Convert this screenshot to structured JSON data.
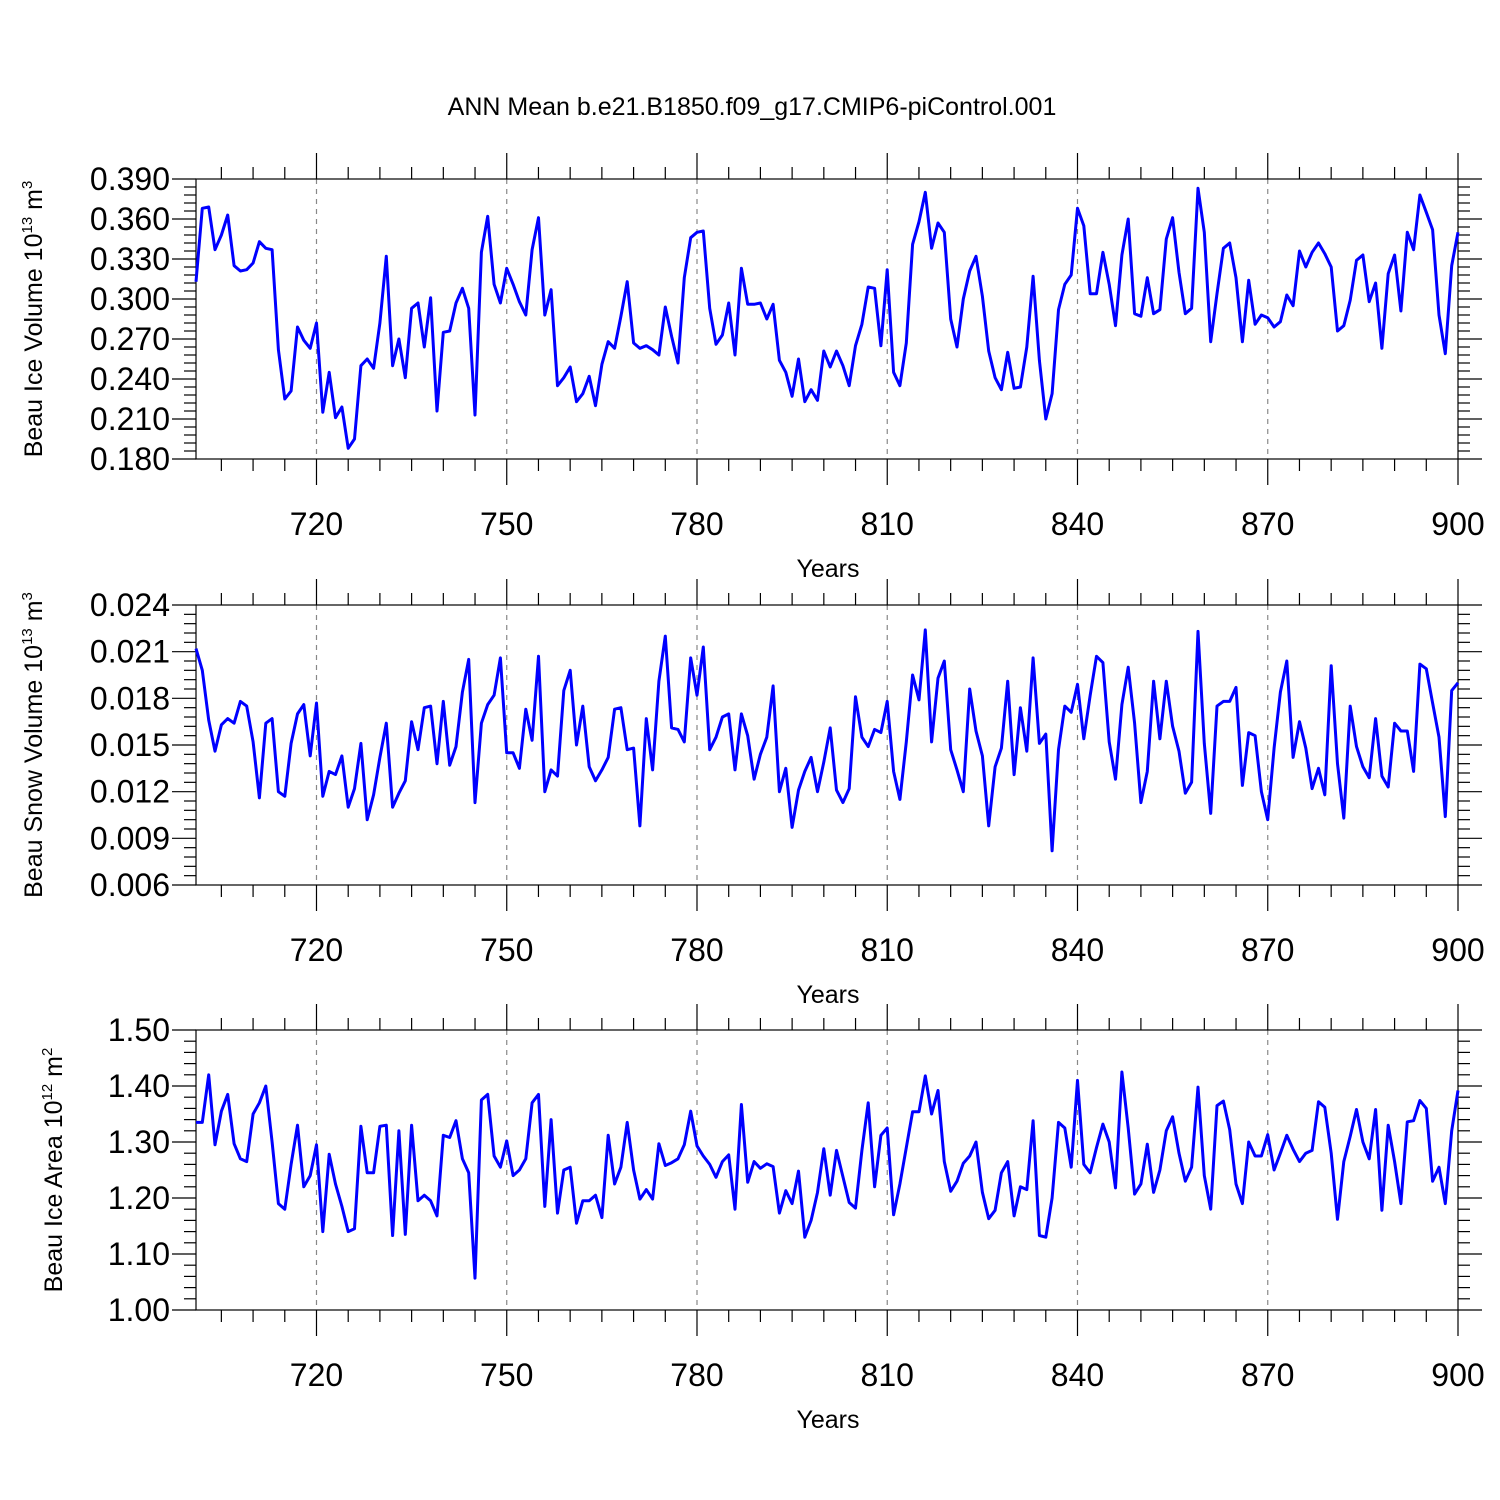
{
  "title": "ANN Mean b.e21.B1850.f09_g17.CMIP6-piControl.001",
  "line_color": "#0000ff",
  "chart_data": [
    {
      "type": "line",
      "ylabel": "Beau Ice Volume 10",
      "ylabel_exp": "13",
      "ylabel_unit": "m",
      "ylabel_unit_exp": "3",
      "xlabel": "Years",
      "xlim": [
        701,
        900
      ],
      "ylim": [
        0.18,
        0.39
      ],
      "yticks": [
        "0.180",
        "0.210",
        "0.240",
        "0.270",
        "0.300",
        "0.330",
        "0.360",
        "0.390"
      ],
      "ytick_values": [
        0.18,
        0.21,
        0.24,
        0.27,
        0.3,
        0.33,
        0.36,
        0.39
      ],
      "xticks": [
        "720",
        "750",
        "780",
        "810",
        "840",
        "870",
        "900"
      ],
      "xtick_values": [
        720,
        750,
        780,
        810,
        840,
        870,
        900
      ],
      "grid": "vertical-dashed",
      "x_start": 701,
      "values": [
        0.313,
        0.368,
        0.369,
        0.337,
        0.348,
        0.363,
        0.325,
        0.321,
        0.322,
        0.327,
        0.343,
        0.338,
        0.337,
        0.262,
        0.225,
        0.231,
        0.279,
        0.269,
        0.263,
        0.282,
        0.215,
        0.245,
        0.211,
        0.219,
        0.188,
        0.195,
        0.25,
        0.255,
        0.248,
        0.282,
        0.332,
        0.25,
        0.27,
        0.241,
        0.293,
        0.297,
        0.264,
        0.301,
        0.216,
        0.275,
        0.276,
        0.297,
        0.308,
        0.293,
        0.213,
        0.335,
        0.362,
        0.311,
        0.297,
        0.323,
        0.311,
        0.298,
        0.288,
        0.337,
        0.361,
        0.288,
        0.307,
        0.235,
        0.241,
        0.249,
        0.223,
        0.229,
        0.242,
        0.22,
        0.251,
        0.268,
        0.263,
        0.287,
        0.313,
        0.267,
        0.263,
        0.265,
        0.262,
        0.258,
        0.294,
        0.272,
        0.252,
        0.316,
        0.346,
        0.35,
        0.351,
        0.293,
        0.266,
        0.273,
        0.297,
        0.258,
        0.323,
        0.296,
        0.296,
        0.297,
        0.285,
        0.296,
        0.254,
        0.245,
        0.227,
        0.255,
        0.223,
        0.232,
        0.224,
        0.261,
        0.249,
        0.261,
        0.25,
        0.235,
        0.265,
        0.281,
        0.309,
        0.308,
        0.265,
        0.322,
        0.245,
        0.235,
        0.267,
        0.341,
        0.358,
        0.38,
        0.338,
        0.357,
        0.35,
        0.285,
        0.264,
        0.3,
        0.321,
        0.332,
        0.302,
        0.261,
        0.241,
        0.232,
        0.26,
        0.233,
        0.234,
        0.264,
        0.317,
        0.254,
        0.21,
        0.229,
        0.292,
        0.311,
        0.318,
        0.368,
        0.355,
        0.304,
        0.304,
        0.335,
        0.311,
        0.28,
        0.333,
        0.36,
        0.289,
        0.287,
        0.316,
        0.289,
        0.292,
        0.345,
        0.361,
        0.32,
        0.289,
        0.293,
        0.383,
        0.35,
        0.268,
        0.304,
        0.338,
        0.342,
        0.316,
        0.268,
        0.314,
        0.281,
        0.288,
        0.286,
        0.279,
        0.283,
        0.303,
        0.295,
        0.336,
        0.324,
        0.335,
        0.342,
        0.334,
        0.324,
        0.276,
        0.28,
        0.299,
        0.329,
        0.333,
        0.298,
        0.312,
        0.263,
        0.319,
        0.333,
        0.291,
        0.35,
        0.337,
        0.378,
        0.365,
        0.352,
        0.288,
        0.259,
        0.325,
        0.35
      ]
    },
    {
      "type": "line",
      "ylabel": "Beau Snow Volume 10",
      "ylabel_exp": "13",
      "ylabel_unit": "m",
      "ylabel_unit_exp": "3",
      "xlabel": "Years",
      "xlim": [
        701,
        900
      ],
      "ylim": [
        0.006,
        0.024
      ],
      "yticks": [
        "0.006",
        "0.009",
        "0.012",
        "0.015",
        "0.018",
        "0.021",
        "0.024"
      ],
      "ytick_values": [
        0.006,
        0.009,
        0.012,
        0.015,
        0.018,
        0.021,
        0.024
      ],
      "xticks": [
        "720",
        "750",
        "780",
        "810",
        "840",
        "870",
        "900"
      ],
      "xtick_values": [
        720,
        750,
        780,
        810,
        840,
        870,
        900
      ],
      "grid": "vertical-dashed",
      "x_start": 701,
      "values": [
        0.0212,
        0.0198,
        0.0166,
        0.0146,
        0.0163,
        0.0167,
        0.0164,
        0.0178,
        0.0175,
        0.0152,
        0.0116,
        0.0164,
        0.0167,
        0.012,
        0.0117,
        0.0151,
        0.017,
        0.0176,
        0.0143,
        0.0177,
        0.0117,
        0.0133,
        0.0131,
        0.0143,
        0.011,
        0.0122,
        0.0151,
        0.0102,
        0.0118,
        0.0142,
        0.0164,
        0.011,
        0.0119,
        0.0127,
        0.0165,
        0.0147,
        0.0174,
        0.0175,
        0.0138,
        0.0178,
        0.0137,
        0.0149,
        0.0184,
        0.0205,
        0.0113,
        0.0164,
        0.0176,
        0.0182,
        0.0206,
        0.0145,
        0.0145,
        0.0135,
        0.0173,
        0.0153,
        0.0207,
        0.012,
        0.0134,
        0.013,
        0.0185,
        0.0198,
        0.015,
        0.0175,
        0.0136,
        0.0127,
        0.0134,
        0.0142,
        0.0173,
        0.0174,
        0.0147,
        0.0148,
        0.0098,
        0.0167,
        0.0134,
        0.0191,
        0.022,
        0.0161,
        0.016,
        0.0152,
        0.0206,
        0.0182,
        0.0213,
        0.0147,
        0.0155,
        0.0168,
        0.017,
        0.0134,
        0.017,
        0.0156,
        0.0128,
        0.0144,
        0.0155,
        0.0188,
        0.012,
        0.0135,
        0.0097,
        0.0121,
        0.0133,
        0.0142,
        0.012,
        0.0139,
        0.0161,
        0.0121,
        0.0113,
        0.0122,
        0.0181,
        0.0155,
        0.0149,
        0.016,
        0.0158,
        0.0178,
        0.0133,
        0.0115,
        0.0152,
        0.0195,
        0.0179,
        0.0224,
        0.0152,
        0.0193,
        0.0204,
        0.0147,
        0.0134,
        0.012,
        0.0186,
        0.0159,
        0.0143,
        0.0098,
        0.0136,
        0.0148,
        0.0191,
        0.0131,
        0.0174,
        0.0146,
        0.0206,
        0.0151,
        0.0157,
        0.0082,
        0.0147,
        0.0175,
        0.0171,
        0.0189,
        0.0154,
        0.0182,
        0.0207,
        0.0203,
        0.0152,
        0.0128,
        0.0176,
        0.02,
        0.0164,
        0.0113,
        0.0133,
        0.0191,
        0.0154,
        0.0191,
        0.0162,
        0.0146,
        0.0119,
        0.0126,
        0.0223,
        0.0151,
        0.0106,
        0.0175,
        0.0178,
        0.0178,
        0.0187,
        0.0124,
        0.0158,
        0.0156,
        0.012,
        0.0102,
        0.0148,
        0.0184,
        0.0204,
        0.0142,
        0.0165,
        0.0148,
        0.0122,
        0.0135,
        0.0118,
        0.0201,
        0.0138,
        0.0103,
        0.0175,
        0.0149,
        0.0136,
        0.0129,
        0.0167,
        0.013,
        0.0123,
        0.0164,
        0.0159,
        0.0159,
        0.0133,
        0.0202,
        0.0199,
        0.0177,
        0.0155,
        0.0104,
        0.0185,
        0.019
      ]
    },
    {
      "type": "line",
      "ylabel": "Beau Ice Area 10",
      "ylabel_exp": "12",
      "ylabel_unit": "m",
      "ylabel_unit_exp": "2",
      "xlabel": "Years",
      "xlim": [
        701,
        900
      ],
      "ylim": [
        1.0,
        1.5
      ],
      "yticks": [
        "1.00",
        "1.10",
        "1.20",
        "1.30",
        "1.40",
        "1.50"
      ],
      "ytick_values": [
        1.0,
        1.1,
        1.2,
        1.3,
        1.4,
        1.5
      ],
      "xticks": [
        "720",
        "750",
        "780",
        "810",
        "840",
        "870",
        "900"
      ],
      "xtick_values": [
        720,
        750,
        780,
        810,
        840,
        870,
        900
      ],
      "grid": "vertical-dashed",
      "x_start": 701,
      "values": [
        1.335,
        1.335,
        1.42,
        1.295,
        1.355,
        1.385,
        1.297,
        1.27,
        1.265,
        1.35,
        1.37,
        1.4,
        1.3,
        1.19,
        1.18,
        1.26,
        1.33,
        1.22,
        1.24,
        1.295,
        1.14,
        1.278,
        1.225,
        1.185,
        1.14,
        1.145,
        1.328,
        1.245,
        1.245,
        1.328,
        1.33,
        1.133,
        1.32,
        1.135,
        1.33,
        1.195,
        1.205,
        1.195,
        1.168,
        1.312,
        1.308,
        1.338,
        1.27,
        1.245,
        1.057,
        1.375,
        1.385,
        1.275,
        1.255,
        1.302,
        1.24,
        1.25,
        1.27,
        1.37,
        1.385,
        1.185,
        1.34,
        1.173,
        1.25,
        1.255,
        1.155,
        1.195,
        1.195,
        1.205,
        1.165,
        1.312,
        1.225,
        1.255,
        1.335,
        1.25,
        1.198,
        1.215,
        1.198,
        1.297,
        1.258,
        1.263,
        1.27,
        1.295,
        1.355,
        1.293,
        1.275,
        1.26,
        1.237,
        1.265,
        1.277,
        1.18,
        1.367,
        1.228,
        1.265,
        1.253,
        1.261,
        1.256,
        1.173,
        1.213,
        1.19,
        1.248,
        1.13,
        1.16,
        1.21,
        1.288,
        1.205,
        1.285,
        1.238,
        1.192,
        1.182,
        1.285,
        1.37,
        1.22,
        1.312,
        1.325,
        1.17,
        1.225,
        1.29,
        1.354,
        1.354,
        1.418,
        1.35,
        1.392,
        1.265,
        1.212,
        1.23,
        1.262,
        1.275,
        1.3,
        1.21,
        1.163,
        1.178,
        1.245,
        1.265,
        1.168,
        1.22,
        1.215,
        1.338,
        1.133,
        1.13,
        1.2,
        1.335,
        1.325,
        1.255,
        1.41,
        1.26,
        1.245,
        1.29,
        1.332,
        1.3,
        1.218,
        1.425,
        1.325,
        1.207,
        1.225,
        1.296,
        1.21,
        1.25,
        1.32,
        1.345,
        1.28,
        1.23,
        1.255,
        1.398,
        1.24,
        1.18,
        1.365,
        1.373,
        1.322,
        1.225,
        1.19,
        1.3,
        1.275,
        1.275,
        1.313,
        1.25,
        1.28,
        1.312,
        1.287,
        1.265,
        1.28,
        1.285,
        1.372,
        1.362,
        1.28,
        1.162,
        1.265,
        1.31,
        1.358,
        1.3,
        1.27,
        1.358,
        1.178,
        1.33,
        1.265,
        1.19,
        1.336,
        1.338,
        1.374,
        1.36,
        1.23,
        1.255,
        1.19,
        1.32,
        1.392
      ]
    }
  ]
}
